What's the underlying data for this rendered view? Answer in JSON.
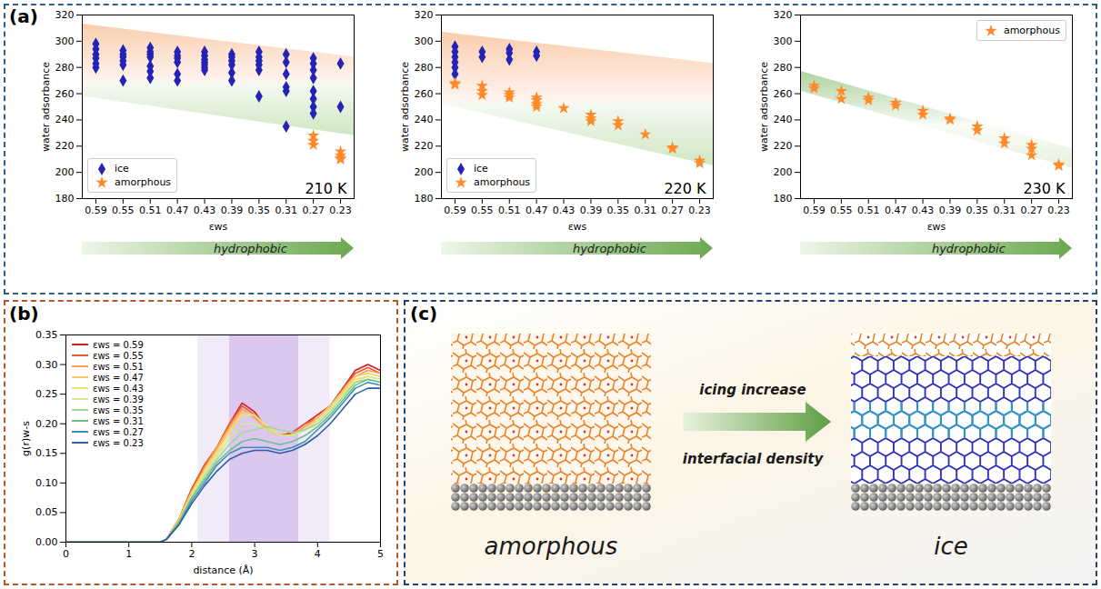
{
  "chart_data": [
    {
      "type": "scatter",
      "x_label": "εws",
      "y_label": "water adsorbance",
      "annotation": "210 K",
      "arrow_label": "hydrophobic",
      "xlim": [
        0.61,
        0.21
      ],
      "xticks": [
        0.59,
        0.55,
        0.51,
        0.47,
        0.43,
        0.39,
        0.35,
        0.31,
        0.27,
        0.23
      ],
      "ylim": [
        180,
        320
      ],
      "yticks": [
        180,
        200,
        220,
        240,
        260,
        280,
        300,
        320
      ],
      "legend": "lower left",
      "band": {
        "x": [
          0.61,
          0.21
        ],
        "upper": [
          313,
          288
        ],
        "lower": [
          258,
          228
        ],
        "colors": [
          "#f7a46a",
          "#9fcf86"
        ]
      },
      "series": [
        {
          "name": "ice",
          "color": "#2323b5",
          "marker": "diamond",
          "x": [
            0.59,
            0.59,
            0.59,
            0.59,
            0.59,
            0.59,
            0.55,
            0.55,
            0.55,
            0.55,
            0.55,
            0.55,
            0.51,
            0.51,
            0.51,
            0.51,
            0.51,
            0.51,
            0.51,
            0.47,
            0.47,
            0.47,
            0.47,
            0.47,
            0.47,
            0.43,
            0.43,
            0.43,
            0.43,
            0.43,
            0.43,
            0.43,
            0.39,
            0.39,
            0.39,
            0.39,
            0.39,
            0.39,
            0.35,
            0.35,
            0.35,
            0.35,
            0.35,
            0.35,
            0.31,
            0.31,
            0.31,
            0.31,
            0.31,
            0.31,
            0.27,
            0.27,
            0.27,
            0.27,
            0.27,
            0.27,
            0.27,
            0.27,
            0.23,
            0.23
          ],
          "values": [
            298,
            294,
            290,
            287,
            283,
            280,
            293,
            290,
            288,
            285,
            282,
            270,
            295,
            292,
            290,
            288,
            281,
            277,
            272,
            292,
            289,
            287,
            284,
            275,
            270,
            292,
            289,
            286,
            284,
            282,
            280,
            278,
            290,
            288,
            285,
            282,
            276,
            270,
            292,
            288,
            285,
            282,
            278,
            258,
            290,
            284,
            275,
            265,
            262,
            235,
            287,
            283,
            278,
            272,
            262,
            256,
            250,
            245,
            283,
            250
          ]
        },
        {
          "name": "amorphous",
          "color": "#ff8a2b",
          "marker": "star",
          "x": [
            0.27,
            0.27,
            0.27,
            0.23,
            0.23,
            0.23,
            0.23
          ],
          "values": [
            228,
            224,
            221,
            216,
            213,
            211,
            210
          ]
        }
      ]
    },
    {
      "type": "scatter",
      "x_label": "εws",
      "y_label": "water adsorbance",
      "annotation": "220 K",
      "arrow_label": "hydrophobic",
      "xlim": [
        0.61,
        0.21
      ],
      "xticks": [
        0.59,
        0.55,
        0.51,
        0.47,
        0.43,
        0.39,
        0.35,
        0.31,
        0.27,
        0.23
      ],
      "ylim": [
        180,
        320
      ],
      "yticks": [
        180,
        200,
        220,
        240,
        260,
        280,
        300,
        320
      ],
      "legend": "lower left",
      "band": {
        "x": [
          0.61,
          0.21
        ],
        "upper": [
          307,
          283
        ],
        "lower": [
          252,
          205
        ],
        "colors": [
          "#f7a46a",
          "#9fcf86"
        ]
      },
      "series": [
        {
          "name": "ice",
          "color": "#2323b5",
          "marker": "diamond",
          "x": [
            0.59,
            0.59,
            0.59,
            0.59,
            0.59,
            0.59,
            0.55,
            0.55,
            0.51,
            0.51,
            0.51,
            0.47,
            0.47
          ],
          "values": [
            296,
            292,
            288,
            284,
            280,
            275,
            292,
            288,
            294,
            291,
            286,
            292,
            289
          ]
        },
        {
          "name": "amorphous",
          "color": "#ff8a2b",
          "marker": "star",
          "x": [
            0.59,
            0.59,
            0.55,
            0.55,
            0.55,
            0.51,
            0.51,
            0.51,
            0.47,
            0.47,
            0.47,
            0.47,
            0.43,
            0.39,
            0.39,
            0.39,
            0.35,
            0.35,
            0.31,
            0.27,
            0.27,
            0.23,
            0.23
          ],
          "values": [
            268,
            267,
            266,
            262,
            259,
            261,
            259,
            257,
            257,
            255,
            252,
            250,
            249,
            244,
            241,
            239,
            239,
            236,
            229,
            219,
            218,
            209,
            207
          ]
        }
      ]
    },
    {
      "type": "scatter",
      "x_label": "εws",
      "y_label": "water adsorbance",
      "annotation": "230 K",
      "arrow_label": "hydrophobic",
      "xlim": [
        0.61,
        0.21
      ],
      "xticks": [
        0.59,
        0.55,
        0.51,
        0.47,
        0.43,
        0.39,
        0.35,
        0.31,
        0.27,
        0.23
      ],
      "ylim": [
        180,
        320
      ],
      "yticks": [
        180,
        200,
        220,
        240,
        260,
        280,
        300,
        320
      ],
      "legend": "upper right",
      "band": {
        "x": [
          0.61,
          0.21
        ],
        "upper": [
          277,
          218
        ],
        "lower": [
          262,
          203
        ],
        "colors": [
          "#6fae55",
          "#cfe6c0"
        ]
      },
      "series": [
        {
          "name": "amorphous",
          "color": "#ff8a2b",
          "marker": "star",
          "x": [
            0.59,
            0.59,
            0.55,
            0.55,
            0.51,
            0.51,
            0.47,
            0.47,
            0.43,
            0.43,
            0.39,
            0.39,
            0.35,
            0.35,
            0.31,
            0.31,
            0.27,
            0.27,
            0.27,
            0.23,
            0.23
          ],
          "values": [
            266,
            264,
            262,
            256,
            257,
            255,
            253,
            251,
            247,
            244,
            241,
            240,
            235,
            232,
            226,
            222,
            221,
            218,
            213,
            206,
            205
          ]
        }
      ]
    },
    {
      "type": "line",
      "x_label": "distance (Å)",
      "y_label": "g(r)w-s",
      "legend": "upper left",
      "xlim": [
        0,
        5
      ],
      "xticks": [
        0,
        1,
        2,
        3,
        4,
        5
      ],
      "ylim": [
        0,
        0.35
      ],
      "yticks": [
        {
          "value": 0,
          "label": "0.00"
        },
        0.05,
        {
          "value": 0.1,
          "label": "0.10"
        },
        0.15,
        {
          "value": 0.2,
          "label": "0.20"
        },
        0.25,
        {
          "value": 0.3,
          "label": "0.30"
        },
        0.35
      ],
      "highlight": {
        "x": [
          2.6,
          3.7
        ],
        "color": "#dcc8ef"
      },
      "highlight_outer": {
        "x": [
          2.1,
          4.2
        ],
        "color": "#f1eaf8"
      },
      "x": [
        0,
        0.5,
        1,
        1.5,
        1.6,
        1.8,
        2,
        2.2,
        2.4,
        2.6,
        2.8,
        3,
        3.2,
        3.4,
        3.6,
        3.8,
        4,
        4.2,
        4.4,
        4.6,
        4.8,
        5
      ],
      "series": [
        {
          "name": "εws = 0.59",
          "color": "#d7191c",
          "values": [
            0,
            0,
            0,
            0,
            0.005,
            0.04,
            0.09,
            0.13,
            0.16,
            0.2,
            0.235,
            0.22,
            0.19,
            0.18,
            0.185,
            0.2,
            0.215,
            0.23,
            0.26,
            0.29,
            0.3,
            0.29
          ]
        },
        {
          "name": "εws = 0.55",
          "color": "#f05a2c",
          "values": [
            0,
            0,
            0,
            0,
            0.005,
            0.04,
            0.09,
            0.13,
            0.16,
            0.2,
            0.23,
            0.215,
            0.19,
            0.18,
            0.185,
            0.2,
            0.21,
            0.23,
            0.26,
            0.285,
            0.295,
            0.285
          ]
        },
        {
          "name": "εws = 0.51",
          "color": "#f99d4a",
          "values": [
            0,
            0,
            0,
            0,
            0.005,
            0.04,
            0.085,
            0.125,
            0.16,
            0.195,
            0.225,
            0.21,
            0.19,
            0.18,
            0.18,
            0.195,
            0.21,
            0.23,
            0.255,
            0.28,
            0.29,
            0.285
          ]
        },
        {
          "name": "εws = 0.47",
          "color": "#fdc865",
          "values": [
            0,
            0,
            0,
            0,
            0.005,
            0.04,
            0.085,
            0.12,
            0.155,
            0.19,
            0.22,
            0.215,
            0.19,
            0.18,
            0.18,
            0.19,
            0.21,
            0.23,
            0.255,
            0.28,
            0.285,
            0.28
          ]
        },
        {
          "name": "εws = 0.43",
          "color": "#f1e16e",
          "values": [
            0,
            0,
            0,
            0,
            0.005,
            0.035,
            0.08,
            0.12,
            0.15,
            0.185,
            0.215,
            0.215,
            0.195,
            0.18,
            0.18,
            0.19,
            0.205,
            0.225,
            0.25,
            0.275,
            0.28,
            0.275
          ]
        },
        {
          "name": "εws = 0.39",
          "color": "#d4e88c",
          "values": [
            0,
            0,
            0,
            0,
            0.005,
            0.035,
            0.08,
            0.115,
            0.145,
            0.175,
            0.2,
            0.2,
            0.19,
            0.18,
            0.18,
            0.19,
            0.205,
            0.225,
            0.25,
            0.27,
            0.28,
            0.275
          ]
        },
        {
          "name": "εws = 0.35",
          "color": "#a5d88f",
          "values": [
            0,
            0,
            0,
            0,
            0.005,
            0.035,
            0.075,
            0.11,
            0.14,
            0.165,
            0.185,
            0.19,
            0.195,
            0.19,
            0.185,
            0.19,
            0.2,
            0.22,
            0.245,
            0.27,
            0.275,
            0.27
          ]
        },
        {
          "name": "εws = 0.31",
          "color": "#6dbf8a",
          "values": [
            0,
            0,
            0,
            0,
            0.005,
            0.035,
            0.075,
            0.105,
            0.135,
            0.155,
            0.17,
            0.175,
            0.17,
            0.165,
            0.17,
            0.18,
            0.195,
            0.215,
            0.24,
            0.265,
            0.275,
            0.27
          ]
        },
        {
          "name": "εws = 0.27",
          "color": "#3a8fb7",
          "values": [
            0,
            0,
            0,
            0,
            0.005,
            0.03,
            0.07,
            0.1,
            0.13,
            0.15,
            0.16,
            0.16,
            0.16,
            0.155,
            0.16,
            0.17,
            0.19,
            0.21,
            0.235,
            0.26,
            0.27,
            0.265
          ]
        },
        {
          "name": "εws = 0.23",
          "color": "#2b5ea7",
          "values": [
            0,
            0,
            0,
            0,
            0.005,
            0.03,
            0.065,
            0.095,
            0.12,
            0.14,
            0.15,
            0.155,
            0.155,
            0.15,
            0.155,
            0.165,
            0.18,
            0.2,
            0.225,
            0.25,
            0.26,
            0.26
          ]
        }
      ]
    }
  ],
  "panels": {
    "a": {
      "label": "(a)"
    },
    "b": {
      "label": "(b)"
    },
    "c": {
      "label": "(c)",
      "arrow_texts": [
        "icing increase",
        "interfacial density"
      ],
      "captions": [
        "amorphous",
        "ice"
      ]
    }
  }
}
